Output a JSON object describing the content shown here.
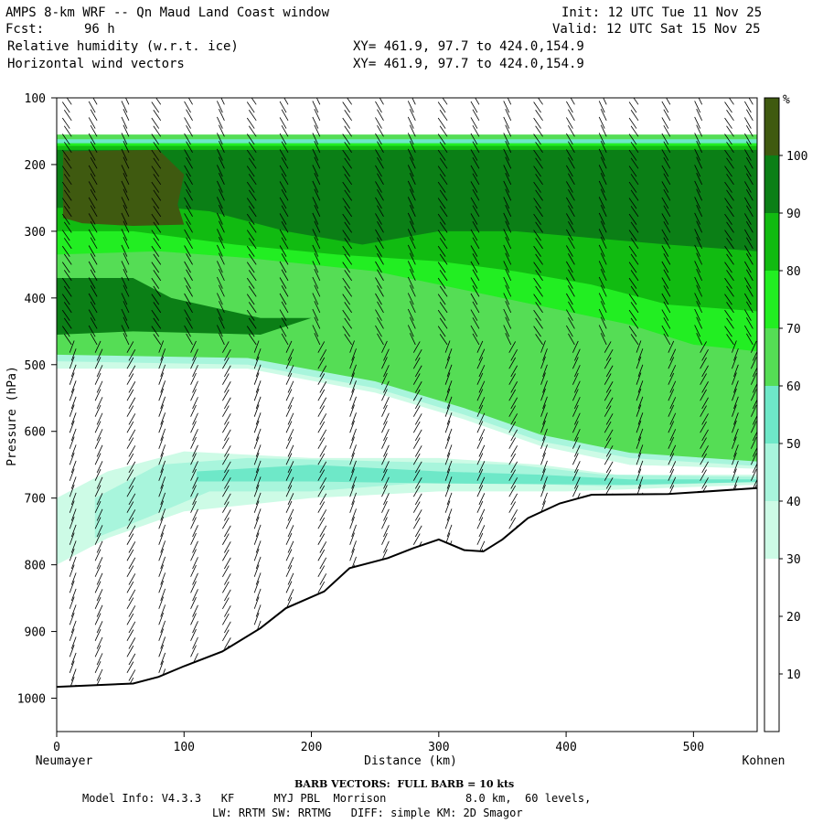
{
  "header": {
    "title": "AMPS 8-km WRF -- Qn Maud Land Coast window",
    "fcst_label": "Fcst:",
    "fcst_value": "96 h",
    "field1": "Relative humidity (w.r.t. ice)",
    "field2": "Horizontal wind vectors",
    "init": "Init: 12 UTC Tue 11 Nov 25",
    "valid": "Valid: 12 UTC Sat 15 Nov 25",
    "xy1": "XY= 461.9, 97.7 to 424.0,154.9",
    "xy2": "XY= 461.9, 97.7 to 424.0,154.9"
  },
  "footer": {
    "barb_note": "BARB VECTORS:  FULL BARB = 10 kts",
    "model_info": "Model Info: V4.3.3   KF      MYJ PBL  Morrison            8.0 km,  60 levels,",
    "physics": "LW: RRTM SW: RRTMG   DIFF: simple KM: 2D Smagor"
  },
  "chart_data": {
    "type": "heatmap",
    "title": "AMPS 8-km WRF -- Qn Maud Land Coast window",
    "xlabel": "Distance (km)",
    "ylabel": "Pressure (hPa)",
    "x_left_label": "Neumayer",
    "x_right_label": "Kohnen",
    "xlim": [
      0,
      550
    ],
    "ylim": [
      1050,
      100
    ],
    "xticks": [
      0,
      100,
      200,
      300,
      400,
      500
    ],
    "yticks": [
      100,
      200,
      300,
      400,
      500,
      600,
      700,
      800,
      900,
      1000
    ],
    "colorbar": {
      "unit": "%",
      "levels": [
        0,
        10,
        20,
        30,
        40,
        50,
        60,
        70,
        80,
        90,
        100,
        110
      ],
      "tick_labels": [
        10,
        20,
        30,
        40,
        50,
        60,
        70,
        80,
        90,
        100
      ],
      "colors": [
        "#ffffff",
        "#ffffff",
        "#ffffff",
        "#cdfbe6",
        "#a8f5dc",
        "#6ee8c8",
        "#55dd55",
        "#22ee22",
        "#11bb11",
        "#0b7f16",
        "#3f5a10"
      ]
    },
    "terrain_surface_hpa": [
      {
        "x": 0,
        "p": 983
      },
      {
        "x": 60,
        "p": 978
      },
      {
        "x": 80,
        "p": 968
      },
      {
        "x": 100,
        "p": 952
      },
      {
        "x": 130,
        "p": 930
      },
      {
        "x": 160,
        "p": 895
      },
      {
        "x": 180,
        "p": 865
      },
      {
        "x": 210,
        "p": 840
      },
      {
        "x": 230,
        "p": 805
      },
      {
        "x": 260,
        "p": 790
      },
      {
        "x": 280,
        "p": 775
      },
      {
        "x": 300,
        "p": 762
      },
      {
        "x": 320,
        "p": 778
      },
      {
        "x": 335,
        "p": 780
      },
      {
        "x": 350,
        "p": 762
      },
      {
        "x": 370,
        "p": 730
      },
      {
        "x": 395,
        "p": 708
      },
      {
        "x": 420,
        "p": 695
      },
      {
        "x": 480,
        "p": 694
      },
      {
        "x": 550,
        "p": 685
      }
    ],
    "rh_layers": [
      {
        "name": "upper_moist_top_hpa",
        "values": [
          {
            "x": 0,
            "p": 155
          },
          {
            "x": 550,
            "p": 155
          }
        ]
      },
      {
        "name": "dry_layer_top_hpa",
        "values": [
          {
            "x": 0,
            "p": 500
          },
          {
            "x": 150,
            "p": 500
          },
          {
            "x": 250,
            "p": 540
          },
          {
            "x": 320,
            "p": 580
          },
          {
            "x": 380,
            "p": 620
          },
          {
            "x": 450,
            "p": 650
          },
          {
            "x": 550,
            "p": 660
          }
        ]
      },
      {
        "name": "rh100_core_hpa",
        "values": [
          {
            "x": 5,
            "p": 180
          },
          {
            "x": 100,
            "p": 180
          },
          {
            "x": 100,
            "p": 290
          },
          {
            "x": 5,
            "p": 290
          }
        ]
      }
    ],
    "wind": {
      "barb_full_kts": 10,
      "barb_columns_km": [
        10,
        30,
        55,
        80,
        105,
        130,
        155,
        180,
        205,
        230,
        255,
        280,
        305,
        330,
        355,
        380,
        405,
        430,
        455,
        480,
        505,
        530,
        545
      ]
    }
  }
}
